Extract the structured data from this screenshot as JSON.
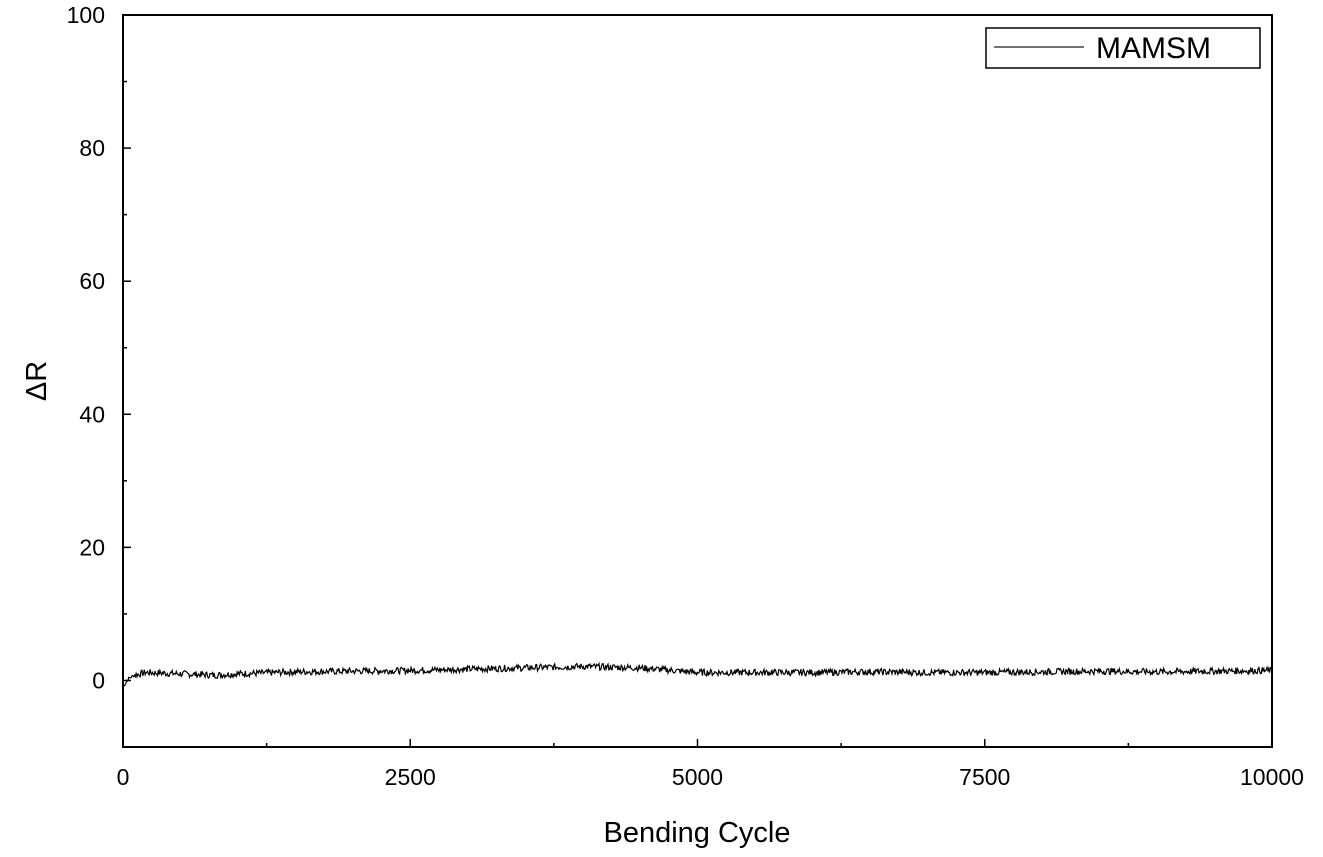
{
  "chart_data": {
    "type": "line",
    "xlabel": "Bending Cycle",
    "ylabel": "ΔR",
    "xlim": [
      0,
      10000
    ],
    "ylim": [
      -10,
      100
    ],
    "x_ticks": [
      0,
      2500,
      5000,
      7500,
      10000
    ],
    "x_tick_labels": [
      "0",
      "2500",
      "5000",
      "7500",
      "10000"
    ],
    "y_ticks": [
      0,
      20,
      40,
      60,
      80,
      100
    ],
    "y_tick_labels": [
      "0",
      "20",
      "40",
      "60",
      "80",
      "100"
    ],
    "grid": false,
    "legend_position": "top-right",
    "series": [
      {
        "name": "MAMSM",
        "color": "#000000",
        "x": [
          0,
          50,
          100,
          200,
          500,
          800,
          1000,
          1500,
          2000,
          2500,
          3000,
          3500,
          4000,
          4500,
          5000,
          5500,
          6000,
          6500,
          7000,
          7500,
          8000,
          8500,
          9000,
          9500,
          10000
        ],
        "y": [
          -1,
          0.3,
          0.8,
          1.2,
          1.0,
          0.8,
          1.0,
          1.3,
          1.4,
          1.5,
          1.7,
          1.9,
          2.1,
          1.9,
          1.2,
          1.2,
          1.2,
          1.3,
          1.2,
          1.2,
          1.3,
          1.4,
          1.3,
          1.4,
          1.5
        ],
        "noise_amplitude": 0.5
      }
    ]
  }
}
